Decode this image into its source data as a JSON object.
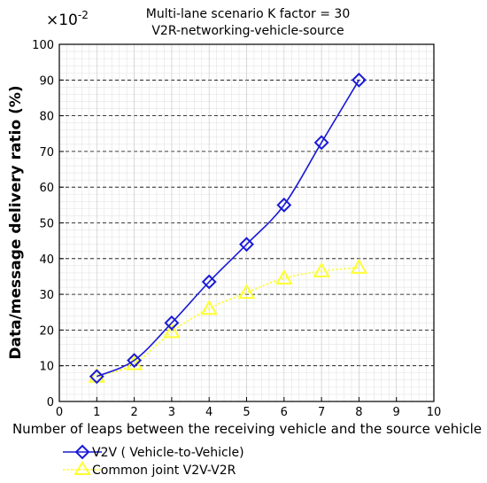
{
  "chart_data": {
    "type": "line",
    "title_lines": [
      "Multi-lane scenario K factor = 30",
      "V2R-networking-vehicle-source"
    ],
    "xlabel": "Number of leaps between the receiving vehicle and the source vehicle",
    "ylabel": "Data/message delivery ratio (%)",
    "y_exponent_label": "×10",
    "y_exponent_power": "-2",
    "xlim": [
      0,
      10
    ],
    "ylim": [
      0,
      100
    ],
    "x_ticks": [
      "0",
      "1",
      "2",
      "3",
      "4",
      "5",
      "6",
      "7",
      "8",
      "9",
      "10"
    ],
    "y_ticks": [
      "0",
      "10",
      "20",
      "30",
      "40",
      "50",
      "60",
      "70",
      "80",
      "90",
      "100"
    ],
    "grid": true,
    "legend_position": "bottom",
    "series": [
      {
        "name": "V2V ( Vehicle-to-Vehicle)",
        "color": "#1a1ad6",
        "line_style": "solid",
        "marker": "diamond",
        "x": [
          1,
          2,
          3,
          4,
          5,
          6,
          7,
          8
        ],
        "y": [
          7,
          11.5,
          22,
          33.5,
          44,
          55,
          72.5,
          90
        ]
      },
      {
        "name": "Common joint V2V-V2R",
        "color": "#ffff33",
        "line_style": "dotted",
        "marker": "triangle",
        "x": [
          1,
          2,
          3,
          4,
          5,
          6,
          7,
          8
        ],
        "y": [
          7,
          10.5,
          19.5,
          26,
          30.5,
          34.5,
          36.5,
          37.5
        ]
      }
    ]
  }
}
